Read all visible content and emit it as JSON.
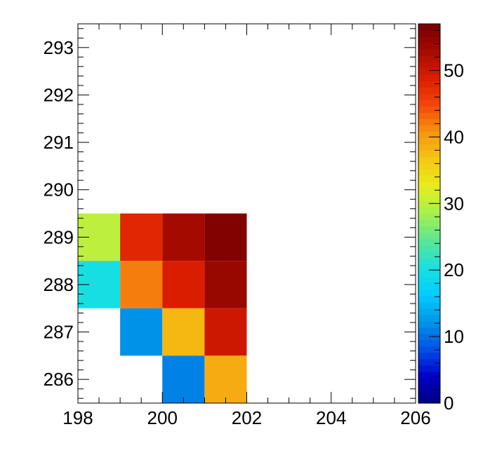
{
  "chart_data": {
    "type": "heatmap",
    "title": "",
    "xlabel": "",
    "ylabel": "",
    "xlim": [
      198,
      206
    ],
    "ylim": [
      285.5,
      293.5
    ],
    "x_ticks": [
      198,
      200,
      202,
      204,
      206
    ],
    "y_ticks": [
      286,
      287,
      288,
      289,
      290,
      291,
      292,
      293
    ],
    "colorbar": {
      "range": [
        0,
        57
      ],
      "ticks": [
        0,
        10,
        20,
        30,
        40,
        50
      ],
      "palette": [
        "#000080",
        "#0000c8",
        "#0050e6",
        "#0096e6",
        "#00ccff",
        "#19e0e0",
        "#5ae695",
        "#a5f050",
        "#e6ee1e",
        "#f5c814",
        "#f5960f",
        "#f5460a",
        "#dc1e00",
        "#a50a00",
        "#750000"
      ]
    },
    "cells": [
      {
        "x": [
          198,
          199
        ],
        "y": 289,
        "value": 30
      },
      {
        "x": [
          199,
          200
        ],
        "y": 289,
        "value": 48
      },
      {
        "x": [
          200,
          201
        ],
        "y": 289,
        "value": 53
      },
      {
        "x": [
          201,
          202
        ],
        "y": 289,
        "value": 56
      },
      {
        "x": [
          198,
          199
        ],
        "y": 288,
        "value": 20
      },
      {
        "x": [
          199,
          200
        ],
        "y": 288,
        "value": 42
      },
      {
        "x": [
          200,
          201
        ],
        "y": 288,
        "value": 49
      },
      {
        "x": [
          201,
          202
        ],
        "y": 288,
        "value": 54
      },
      {
        "x": [
          199,
          200
        ],
        "y": 287,
        "value": 12
      },
      {
        "x": [
          200,
          201
        ],
        "y": 287,
        "value": 38
      },
      {
        "x": [
          201,
          202
        ],
        "y": 287,
        "value": 50
      },
      {
        "x": [
          200,
          201
        ],
        "y": 286,
        "value": 11
      },
      {
        "x": [
          201,
          202
        ],
        "y": 286,
        "value": 39
      }
    ]
  }
}
